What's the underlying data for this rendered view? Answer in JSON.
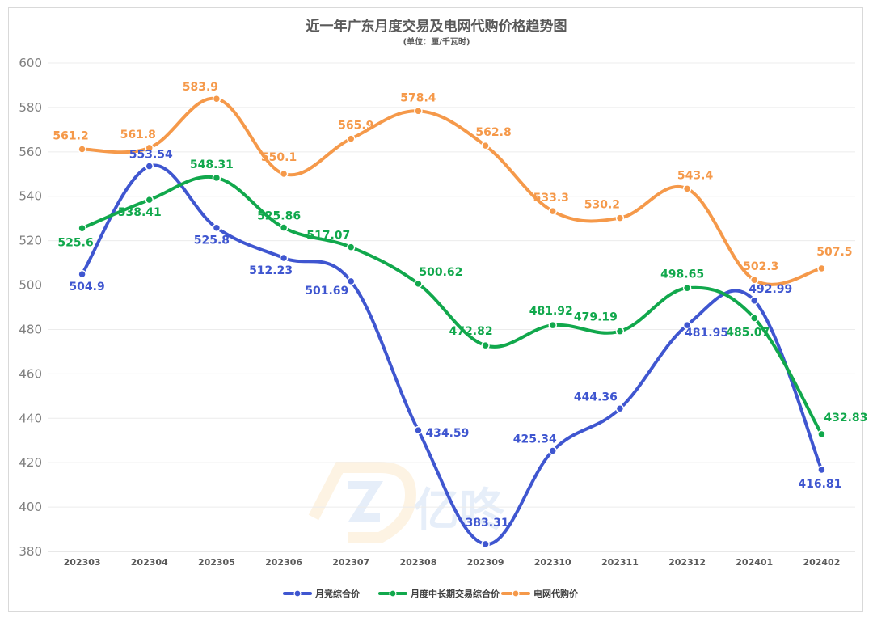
{
  "chart_data": {
    "type": "line",
    "title": "近一年广东月度交易及电网代购价格趋势图",
    "subtitle": "(单位：厘/千瓦时)",
    "categories": [
      "202303",
      "202304",
      "202305",
      "202306",
      "202307",
      "202308",
      "202309",
      "202310",
      "202311",
      "202312",
      "202401",
      "202402"
    ],
    "ylim": [
      380,
      600
    ],
    "yticks": [
      380,
      400,
      420,
      440,
      460,
      480,
      500,
      520,
      540,
      560,
      580,
      600
    ],
    "grid": true,
    "legend_position": "bottom",
    "watermark": "亿咚 E-POWER",
    "series": [
      {
        "name": "月竞综合价",
        "color": "#3f56d0",
        "values": [
          504.9,
          553.54,
          525.8,
          512.23,
          501.69,
          434.59,
          383.31,
          425.34,
          444.36,
          481.95,
          492.99,
          416.81
        ],
        "labels": [
          "504.9",
          "553.54",
          "525.8",
          "512.23",
          "501.69",
          "434.59",
          "383.31",
          "425.34",
          "444.36",
          "481.95",
          "492.99",
          "416.81"
        ]
      },
      {
        "name": "月度中长期交易综合价",
        "color": "#11a84c",
        "values": [
          525.6,
          538.41,
          548.31,
          525.86,
          517.07,
          500.62,
          472.82,
          481.92,
          479.19,
          498.65,
          485.07,
          432.83
        ],
        "labels": [
          "525.6",
          "538.41",
          "548.31",
          "525.86",
          "517.07",
          "500.62",
          "472.82",
          "481.92",
          "479.19",
          "498.65",
          "485.07",
          "432.83"
        ]
      },
      {
        "name": "电网代购价",
        "color": "#f5994a",
        "values": [
          561.2,
          561.8,
          583.9,
          550.1,
          565.9,
          578.4,
          562.8,
          533.3,
          530.2,
          543.4,
          502.3,
          507.5
        ],
        "labels": [
          "561.2",
          "561.8",
          "583.9",
          "550.1",
          "565.9",
          "578.4",
          "562.8",
          "533.3",
          "530.2",
          "543.4",
          "502.3",
          "507.5"
        ]
      }
    ]
  }
}
